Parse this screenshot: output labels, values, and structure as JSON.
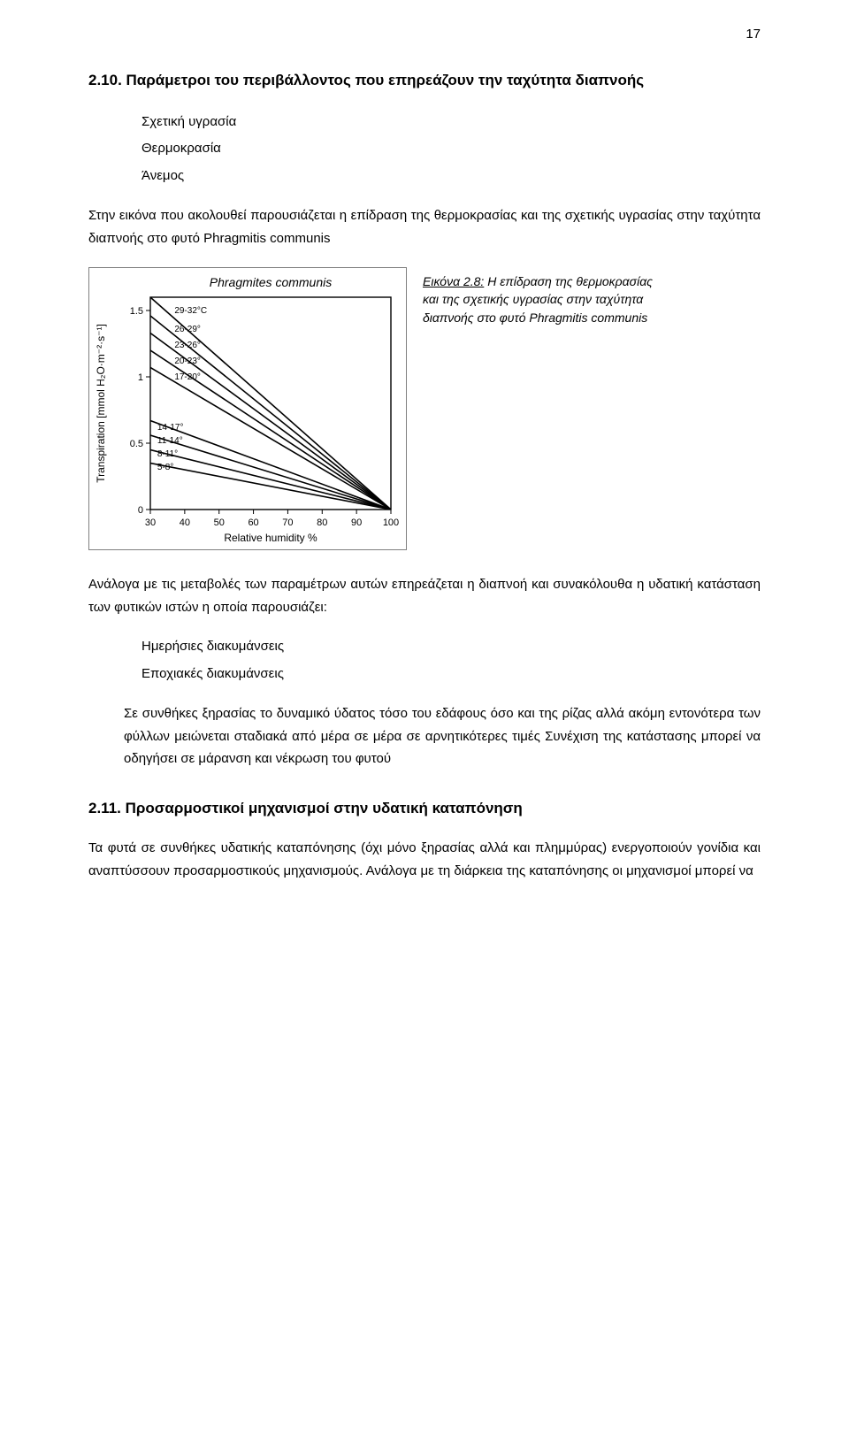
{
  "page_number": "17",
  "section_210": {
    "heading": "2.10. Παράμετροι του περιβάλλοντος που επηρεάζουν την ταχύτητα διαπνοής",
    "bullets": [
      "Σχετική υγρασία",
      "Θερμοκρασία",
      "Άνεμος"
    ],
    "intro": "Στην εικόνα που ακολουθεί παρουσιάζεται η επίδραση της θερμοκρασίας και της σχετικής υγρασίας στην ταχύτητα διαπνοής στο φυτό Phragmitis communis",
    "figure": {
      "caption_lead": "Εικόνα 2.8:",
      "caption_body": "Η επίδραση της θερμοκρασίας και της σχετικής υγρασίας στην ταχύτητα διαπνοής στο φυτό Phragmitis communis",
      "type": "line",
      "title": "Phragmites communis",
      "title_fontsize": 14,
      "xlabel": "Relative humidity %",
      "ylabel": "Transpiration [mmol H₂O·m⁻²·s⁻¹]",
      "label_fontsize": 12,
      "xlim": [
        30,
        100
      ],
      "xtick_step": 10,
      "ylim": [
        0,
        1.6
      ],
      "yticks": [
        0,
        0.5,
        1.0,
        1.5
      ],
      "background_color": "#ffffff",
      "axis_color": "#000000",
      "line_color": "#000000",
      "line_width": 1.6,
      "frame_outer_color": "#7f7f7f",
      "series": [
        {
          "label": "29-32°C",
          "label_xy": [
            36,
            1.5
          ],
          "p0": [
            30,
            1.6
          ],
          "p1": [
            100,
            0.0
          ]
        },
        {
          "label": "26-29°",
          "label_xy": [
            36,
            1.36
          ],
          "p0": [
            30,
            1.46
          ],
          "p1": [
            100,
            0.0
          ]
        },
        {
          "label": "23-26°",
          "label_xy": [
            36,
            1.24
          ],
          "p0": [
            30,
            1.33
          ],
          "p1": [
            100,
            0.0
          ]
        },
        {
          "label": "20-23°",
          "label_xy": [
            36,
            1.12
          ],
          "p0": [
            30,
            1.2
          ],
          "p1": [
            100,
            0.0
          ]
        },
        {
          "label": "17-20°",
          "label_xy": [
            36,
            1.0
          ],
          "p0": [
            30,
            1.07
          ],
          "p1": [
            100,
            0.0
          ]
        },
        {
          "label": "14-17°",
          "label_xy": [
            31,
            0.62
          ],
          "p0": [
            30,
            0.67
          ],
          "p1": [
            100,
            0.0
          ]
        },
        {
          "label": "11-14°",
          "label_xy": [
            31,
            0.52
          ],
          "p0": [
            30,
            0.56
          ],
          "p1": [
            100,
            0.0
          ]
        },
        {
          "label": "8-11°",
          "label_xy": [
            31,
            0.42
          ],
          "p0": [
            30,
            0.45
          ],
          "p1": [
            100,
            0.0
          ]
        },
        {
          "label": "5-8°",
          "label_xy": [
            31,
            0.32
          ],
          "p0": [
            30,
            0.35
          ],
          "p1": [
            100,
            0.0
          ]
        }
      ]
    },
    "after_fig_para": "Ανάλογα με τις μεταβολές των παραμέτρων αυτών επηρεάζεται η διαπνοή και συνακόλουθα η υδατική κατάσταση των φυτικών ιστών η οποία παρουσιάζει:",
    "variations": [
      "Ημερήσιες διακυμάνσεις",
      "Εποχιακές διακυμάνσεις"
    ],
    "last_para": "Σε συνθήκες ξηρασίας το δυναμικό ύδατος τόσο του εδάφους όσο και της ρίζας αλλά ακόμη εντονότερα των φύλλων μειώνεται σταδιακά από μέρα σε μέρα σε αρνητικότερες τιμές Συνέχιση της κατάστασης μπορεί να οδηγήσει σε μάρανση και νέκρωση του φυτού"
  },
  "section_211": {
    "heading": "2.11. Προσαρμοστικοί μηχανισμοί στην υδατική καταπόνηση",
    "para": "Τα φυτά σε συνθήκες υδατικής καταπόνησης (όχι μόνο ξηρασίας αλλά και πλημμύρας) ενεργοποιούν γονίδια και αναπτύσσουν προσαρμοστικούς μηχανισμούς. Ανάλογα με τη διάρκεια της καταπόνησης οι μηχανισμοί μπορεί να"
  }
}
